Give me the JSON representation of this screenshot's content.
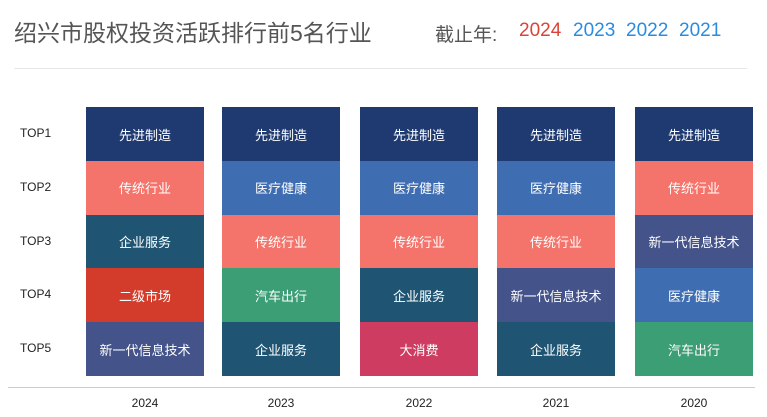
{
  "header": {
    "title": "绍兴市股权投资活跃排行前5名行业",
    "since_label": "截止年:",
    "year_options": [
      {
        "label": "2024",
        "color": "#d9443a"
      },
      {
        "label": "2023",
        "color": "#2b8be0"
      },
      {
        "label": "2022",
        "color": "#2b8be0"
      },
      {
        "label": "2021",
        "color": "#2b8be0"
      }
    ]
  },
  "chart_data": {
    "type": "table",
    "title": "绍兴市股权投资活跃排行前5名行业",
    "rows": [
      "TOP1",
      "TOP2",
      "TOP3",
      "TOP4",
      "TOP5"
    ],
    "columns": [
      "2024",
      "2023",
      "2022",
      "2021",
      "2020"
    ],
    "cells": [
      [
        "先进制造",
        "传统行业",
        "企业服务",
        "二级市场",
        "新一代信息技术"
      ],
      [
        "先进制造",
        "医疗健康",
        "传统行业",
        "汽车出行",
        "企业服务"
      ],
      [
        "先进制造",
        "医疗健康",
        "传统行业",
        "企业服务",
        "大消费"
      ],
      [
        "先进制造",
        "医疗健康",
        "传统行业",
        "新一代信息技术",
        "企业服务"
      ],
      [
        "先进制造",
        "传统行业",
        "新一代信息技术",
        "医疗健康",
        "汽车出行"
      ]
    ],
    "colors": {
      "先进制造": "#1f3a70",
      "传统行业": "#f4736a",
      "企业服务": "#1f5573",
      "二级市场": "#d33c2b",
      "新一代信息技术": "#44538a",
      "医疗健康": "#3f6db1",
      "汽车出行": "#3b9e74",
      "大消费": "#cf3c62"
    }
  }
}
